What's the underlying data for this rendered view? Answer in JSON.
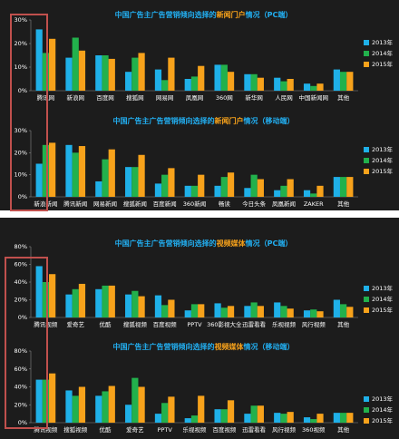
{
  "chart_data": [
    {
      "type": "bar",
      "title": [
        "中国广告主广告营销倾向选择的",
        "新闻门户",
        "情况（PC端）"
      ],
      "categories": [
        "腾讯网",
        "新浪网",
        "百度网",
        "搜狐网",
        "网易网",
        "凤凰网",
        "360网",
        "新华网",
        "人民网",
        "中国新闻网",
        "其他"
      ],
      "series": [
        {
          "name": "2013年",
          "color": "#1fb0e8",
          "values": [
            26,
            14,
            15,
            8,
            9,
            5,
            11,
            7,
            5.5,
            3,
            9
          ]
        },
        {
          "name": "2014年",
          "color": "#22b14c",
          "values": [
            16,
            22.5,
            15,
            14,
            4.5,
            6,
            11,
            7,
            4,
            2,
            8
          ]
        },
        {
          "name": "2015年",
          "color": "#f7a21b",
          "values": [
            22,
            17,
            13.5,
            16,
            14,
            10.5,
            8,
            5.5,
            5,
            3,
            8
          ]
        }
      ],
      "ylim": [
        0,
        30
      ],
      "yticks": [
        {
          "value": 0,
          "label": "0%"
        },
        {
          "value": 10,
          "label": "10%"
        },
        {
          "value": 20,
          "label": "20%"
        },
        {
          "value": 30,
          "label": "30%"
        }
      ]
    },
    {
      "type": "bar",
      "title": [
        "中国广告主广告营销倾向选择的",
        "新闻门户",
        "情况（移动端）"
      ],
      "categories": [
        "新浪新闻",
        "腾讯新闻",
        "网易新闻",
        "搜狐新闻",
        "百度新闻",
        "360新闻",
        "畅读",
        "今日头条",
        "凤凰新闻",
        "ZAKER",
        "其他"
      ],
      "series": [
        {
          "name": "2013年",
          "color": "#1fb0e8",
          "values": [
            15,
            23.5,
            7,
            13.5,
            6,
            5,
            5,
            4,
            3,
            3,
            9
          ]
        },
        {
          "name": "2014年",
          "color": "#22b14c",
          "values": [
            23.5,
            20,
            17,
            13.5,
            10,
            5,
            9,
            10,
            5,
            1.5,
            9
          ]
        },
        {
          "name": "2015年",
          "color": "#f7a21b",
          "values": [
            24.5,
            23,
            21.5,
            19,
            13,
            10,
            11,
            8,
            8,
            5,
            9
          ]
        }
      ],
      "ylim": [
        0,
        30
      ],
      "yticks": [
        {
          "value": 0,
          "label": "0%"
        },
        {
          "value": 10,
          "label": "10%"
        },
        {
          "value": 20,
          "label": "20%"
        },
        {
          "value": 30,
          "label": "30%"
        }
      ]
    },
    {
      "type": "bar",
      "title": [
        "中国广告主广告营销倾向选择的",
        "视频媒体",
        "情况（PC端）"
      ],
      "categories": [
        "腾讯视频",
        "爱奇艺",
        "优酷",
        "搜狐视频",
        "百度视频",
        "PPTV",
        "360影视大全",
        "迅雷看看",
        "乐视视频",
        "风行视频",
        "其他"
      ],
      "series": [
        {
          "name": "2013年",
          "color": "#1fb0e8",
          "values": [
            58,
            26,
            32,
            26,
            25,
            8,
            16,
            13,
            17,
            8,
            20
          ]
        },
        {
          "name": "2014年",
          "color": "#22b14c",
          "values": [
            40,
            32,
            36,
            30,
            14,
            15,
            11,
            17,
            13,
            9,
            15
          ]
        },
        {
          "name": "2015年",
          "color": "#f7a21b",
          "values": [
            49,
            38,
            36,
            24,
            20,
            15,
            13,
            13,
            10,
            7,
            12
          ]
        }
      ],
      "ylim": [
        0,
        80
      ],
      "yticks": [
        {
          "value": 0,
          "label": "0%"
        },
        {
          "value": 20,
          "label": "20%"
        },
        {
          "value": 40,
          "label": "40%"
        },
        {
          "value": 60,
          "label": "60%"
        },
        {
          "value": 80,
          "label": "80%"
        }
      ]
    },
    {
      "type": "bar",
      "title": [
        "中国广告主广告营销倾向选择的",
        "视频媒体",
        "情况（移动端）"
      ],
      "categories": [
        "腾讯视频",
        "搜狐视频",
        "优酷",
        "爱奇艺",
        "PPTV",
        "乐视视频",
        "百度视频",
        "迅雷看看",
        "风行视频",
        "360视频",
        "其他"
      ],
      "series": [
        {
          "name": "2013年",
          "color": "#1fb0e8",
          "values": [
            48,
            36,
            30,
            20,
            10,
            5,
            15,
            10,
            11,
            6,
            11
          ]
        },
        {
          "name": "2014年",
          "color": "#22b14c",
          "values": [
            48,
            30,
            35,
            50,
            22,
            8,
            15,
            19,
            10,
            4,
            11
          ]
        },
        {
          "name": "2015年",
          "color": "#f7a21b",
          "values": [
            55,
            40,
            41,
            40,
            29,
            30,
            25,
            19,
            12,
            10,
            11
          ]
        }
      ],
      "ylim": [
        0,
        80
      ],
      "yticks": [
        {
          "value": 0,
          "label": "0%"
        },
        {
          "value": 20,
          "label": "20%"
        },
        {
          "value": 40,
          "label": "40%"
        },
        {
          "value": 60,
          "label": "60%"
        },
        {
          "value": 80,
          "label": "80%"
        }
      ]
    }
  ]
}
